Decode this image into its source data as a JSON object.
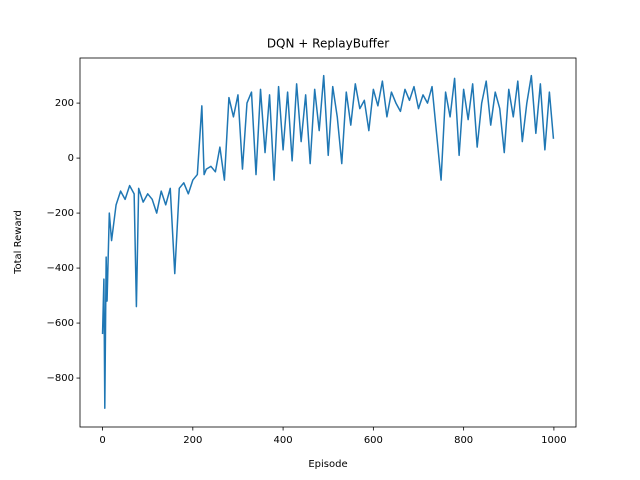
{
  "chart_data": {
    "type": "line",
    "title": "DQN + ReplayBuffer",
    "x_label": "Episode",
    "y_label": "Total Reward",
    "x": [
      0,
      3,
      5,
      8,
      10,
      15,
      20,
      30,
      40,
      50,
      60,
      70,
      75,
      80,
      90,
      100,
      110,
      120,
      130,
      140,
      150,
      160,
      170,
      180,
      190,
      200,
      210,
      220,
      225,
      230,
      240,
      250,
      260,
      270,
      280,
      290,
      300,
      310,
      320,
      330,
      340,
      350,
      360,
      370,
      380,
      390,
      400,
      410,
      420,
      430,
      440,
      450,
      460,
      470,
      480,
      490,
      500,
      510,
      520,
      530,
      540,
      550,
      560,
      570,
      580,
      590,
      600,
      610,
      620,
      630,
      640,
      650,
      660,
      670,
      680,
      690,
      700,
      710,
      720,
      730,
      740,
      750,
      760,
      770,
      780,
      790,
      800,
      810,
      820,
      830,
      840,
      850,
      860,
      870,
      880,
      890,
      900,
      910,
      920,
      930,
      940,
      950,
      960,
      970,
      980,
      990,
      999
    ],
    "series": [
      {
        "name": "Total Reward",
        "color": "#1f77b4",
        "values": [
          -640,
          -440,
          -910,
          -360,
          -520,
          -200,
          -300,
          -170,
          -120,
          -150,
          -100,
          -130,
          -540,
          -110,
          -160,
          -130,
          -150,
          -200,
          -120,
          -170,
          -110,
          -420,
          -110,
          -90,
          -130,
          -80,
          -60,
          190,
          -60,
          -40,
          -30,
          -50,
          40,
          -80,
          220,
          150,
          230,
          -40,
          200,
          240,
          -60,
          250,
          20,
          230,
          -80,
          260,
          30,
          240,
          -10,
          270,
          60,
          230,
          -20,
          250,
          100,
          300,
          10,
          260,
          150,
          -20,
          240,
          120,
          270,
          180,
          210,
          100,
          250,
          190,
          280,
          150,
          240,
          200,
          170,
          250,
          210,
          260,
          180,
          230,
          200,
          260,
          90,
          -80,
          240,
          150,
          290,
          10,
          250,
          140,
          270,
          40,
          200,
          280,
          120,
          240,
          180,
          20,
          250,
          150,
          280,
          60,
          200,
          300,
          90,
          270,
          30,
          240,
          70
        ]
      }
    ],
    "xlim": [
      -49.95,
      1048.95
    ],
    "ylim": [
      -978,
      364
    ],
    "xticks": [
      0,
      200,
      400,
      600,
      800,
      1000
    ],
    "yticks": [
      {
        "value": -800,
        "label": "−800"
      },
      {
        "value": -600,
        "label": "−600"
      },
      {
        "value": -400,
        "label": "−400"
      },
      {
        "value": -200,
        "label": "−200"
      },
      0,
      200
    ]
  }
}
